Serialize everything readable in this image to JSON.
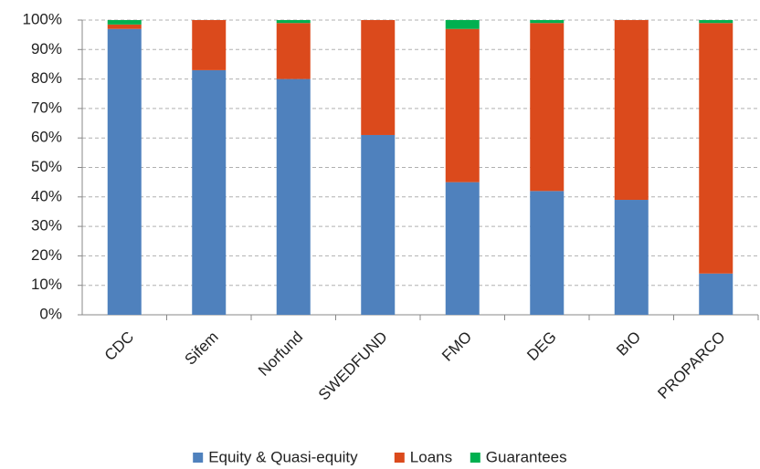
{
  "chart_data": {
    "type": "stacked_bar",
    "categories": [
      "CDC",
      "Sifem",
      "Norfund",
      "SWEDFUND",
      "FMO",
      "DEG",
      "BIO",
      "PROPARCO"
    ],
    "series": [
      {
        "name": "Equity & Quasi-equity",
        "color": "#4f81bd",
        "values": [
          97,
          83,
          80,
          61,
          45,
          42,
          39,
          14
        ]
      },
      {
        "name": "Loans",
        "color": "#db4a1c",
        "values": [
          1.5,
          17,
          19,
          39,
          52,
          57,
          61,
          85
        ]
      },
      {
        "name": "Guarantees",
        "color": "#00b050",
        "values": [
          1.5,
          0,
          1,
          0,
          3,
          1,
          0,
          1
        ]
      }
    ],
    "ylim": [
      0,
      100
    ],
    "yticks": [
      {
        "value": 0,
        "label": "0%"
      },
      {
        "value": 10,
        "label": "10%"
      },
      {
        "value": 20,
        "label": "20%"
      },
      {
        "value": 30,
        "label": "30%"
      },
      {
        "value": 40,
        "label": "40%"
      },
      {
        "value": 50,
        "label": "50%"
      },
      {
        "value": 60,
        "label": "60%"
      },
      {
        "value": 70,
        "label": "70%"
      },
      {
        "value": 80,
        "label": "80%"
      },
      {
        "value": 90,
        "label": "90%"
      },
      {
        "value": 100,
        "label": "100%"
      }
    ],
    "grid": true,
    "legend": "bottom"
  }
}
